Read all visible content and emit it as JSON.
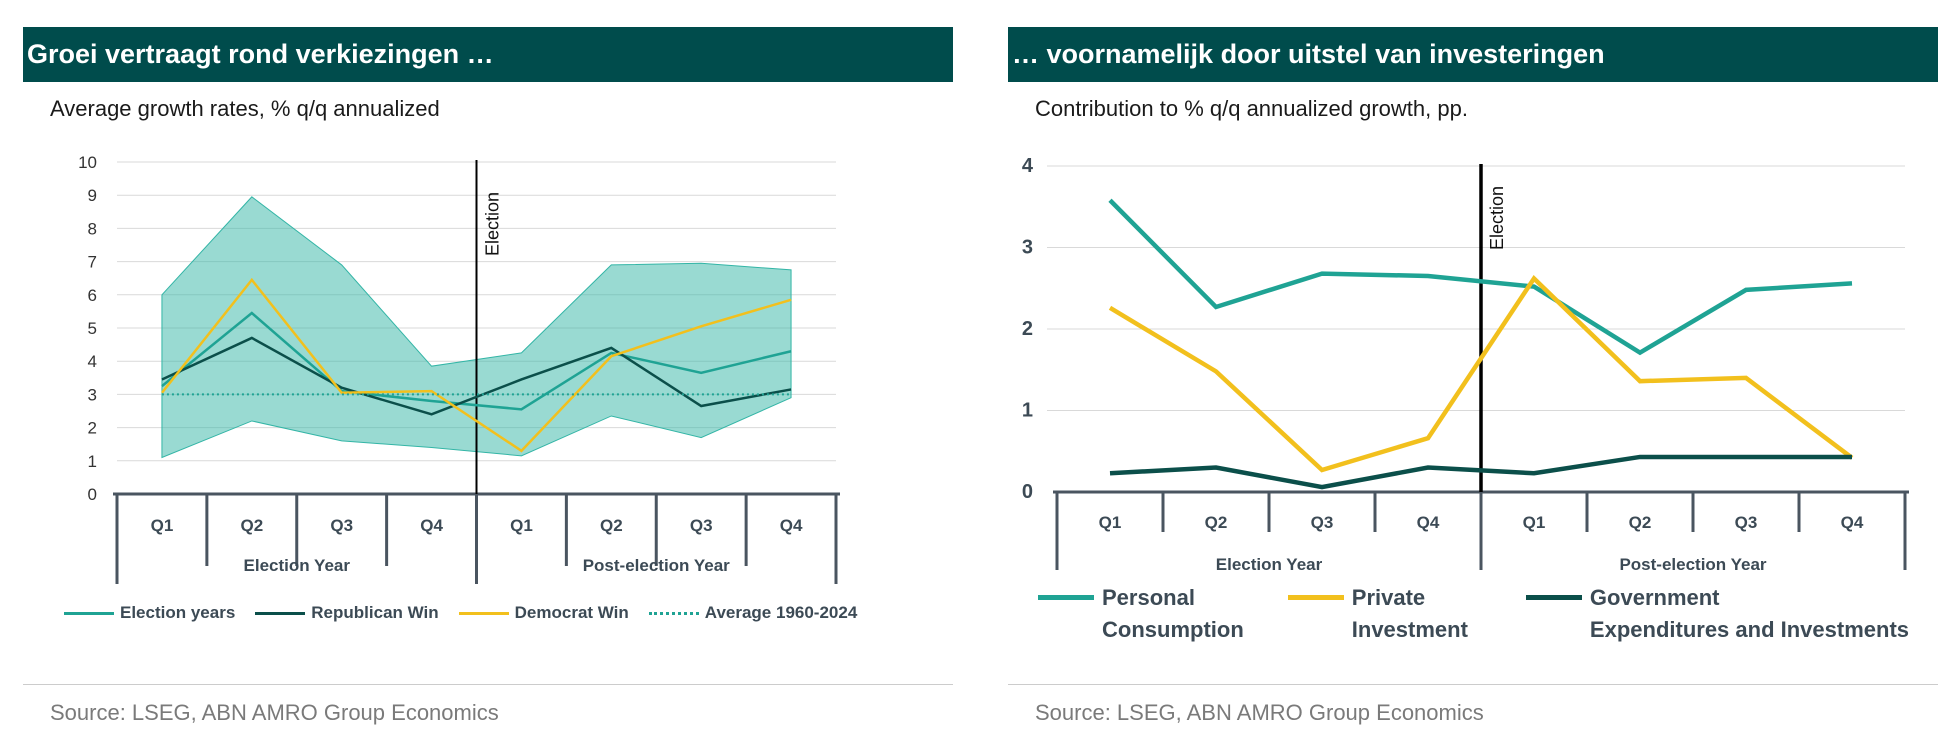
{
  "left": {
    "title": "Groei vertraagt rond verkiezingen …",
    "subtitle": "Average growth rates, % q/q annualized",
    "source": "Source:  LSEG, ABN AMRO Group Economics"
  },
  "right": {
    "title": "… voornamelijk door uitstel van investeringen",
    "subtitle": "Contribution to % q/q annualized growth, pp.",
    "source": "Source: LSEG, ABN AMRO Group Economics"
  },
  "chart_data": [
    {
      "type": "line",
      "categories": [
        "Q1",
        "Q2",
        "Q3",
        "Q4",
        "Q1",
        "Q2",
        "Q3",
        "Q4"
      ],
      "groups": [
        {
          "label": "Election Year",
          "span": [
            0,
            3
          ]
        },
        {
          "label": "Post-election Year",
          "span": [
            4,
            7
          ]
        }
      ],
      "ylim": [
        0,
        10
      ],
      "yticks": [
        0,
        1,
        2,
        3,
        4,
        5,
        6,
        7,
        8,
        9,
        10
      ],
      "grid": true,
      "band": {
        "lower": [
          1.1,
          2.2,
          1.6,
          1.4,
          1.15,
          2.35,
          1.7,
          2.9
        ],
        "upper": [
          6.0,
          8.95,
          6.9,
          3.85,
          4.25,
          6.9,
          6.95,
          6.75
        ],
        "color": "#33b5a6"
      },
      "annotation": {
        "text": "Election",
        "after_index": 3
      },
      "series": [
        {
          "name": "Election years",
          "color": "#1fa394",
          "style": "solid",
          "values": [
            3.25,
            5.45,
            3.1,
            2.8,
            2.55,
            4.25,
            3.65,
            4.3
          ]
        },
        {
          "name": "Republican Win",
          "color": "#0b4f4a",
          "style": "solid",
          "values": [
            3.45,
            4.7,
            3.2,
            2.4,
            3.45,
            4.4,
            2.65,
            3.15
          ]
        },
        {
          "name": "Democrat Win",
          "color": "#f2c01d",
          "style": "solid",
          "values": [
            3.05,
            6.45,
            3.05,
            3.1,
            1.3,
            4.15,
            5.05,
            5.85
          ]
        },
        {
          "name": "Average 1960-2024",
          "color": "#1fa394",
          "style": "dotted",
          "values": [
            3.0,
            3.0,
            3.0,
            3.0,
            3.0,
            3.0,
            3.0,
            3.0
          ]
        }
      ]
    },
    {
      "type": "line",
      "categories": [
        "Q1",
        "Q2",
        "Q3",
        "Q4",
        "Q1",
        "Q2",
        "Q3",
        "Q4"
      ],
      "groups": [
        {
          "label": "Election Year",
          "span": [
            0,
            3
          ]
        },
        {
          "label": "Post-election Year",
          "span": [
            4,
            7
          ]
        }
      ],
      "ylim": [
        0,
        4
      ],
      "yticks": [
        0,
        1,
        2,
        3,
        4
      ],
      "grid": true,
      "annotation": {
        "text": "Election",
        "after_index": 3
      },
      "series": [
        {
          "name": "Personal Consumption",
          "label_lines": [
            "Personal",
            "Consumption"
          ],
          "color": "#1fa394",
          "values": [
            3.58,
            2.27,
            2.68,
            2.65,
            2.52,
            1.71,
            2.48,
            2.56
          ]
        },
        {
          "name": "Private Investment",
          "label_lines": [
            "Private",
            "Investment"
          ],
          "color": "#f2c01d",
          "values": [
            2.26,
            1.48,
            0.27,
            0.66,
            2.62,
            1.36,
            1.4,
            0.42
          ]
        },
        {
          "name": "Government Expenditures and Investments",
          "label_lines": [
            "Government",
            "Expenditures and Investments"
          ],
          "color": "#0b4f4a",
          "values": [
            0.23,
            0.3,
            0.06,
            0.3,
            0.23,
            0.43,
            0.43,
            0.43
          ]
        }
      ]
    }
  ]
}
